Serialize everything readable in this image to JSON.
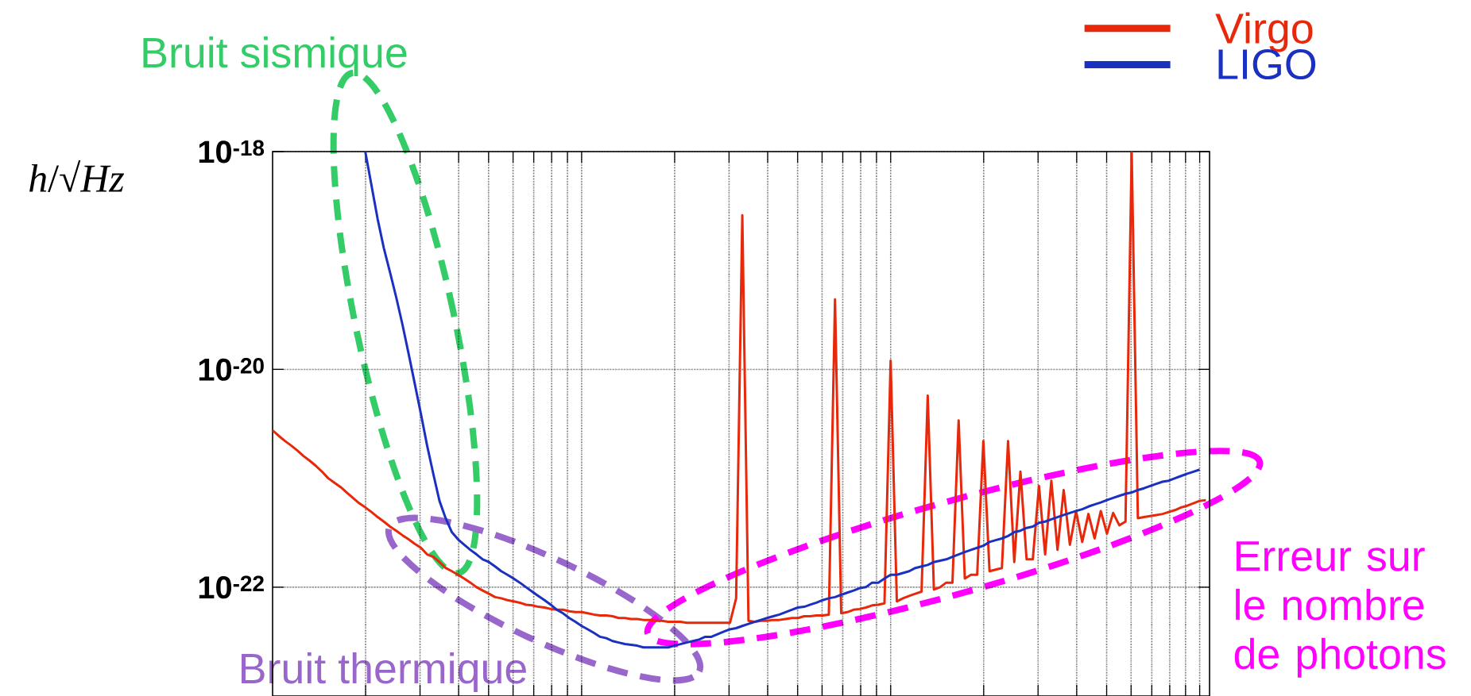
{
  "chart_data": {
    "type": "line",
    "log": "y",
    "grid": true,
    "legend": "top right",
    "marker": "none",
    "line_style": "solid",
    "tick_labels": "y",
    "categories": [
      null,
      null,
      null,
      null,
      null,
      null,
      null,
      null,
      null,
      null,
      null,
      null,
      null,
      null,
      null,
      null,
      null,
      null,
      null,
      null,
      null,
      null,
      null,
      null,
      null,
      null,
      null,
      null,
      null,
      null,
      null,
      null,
      null,
      null,
      null,
      null,
      null,
      null,
      null,
      null,
      null,
      null,
      null,
      null,
      null,
      null,
      null,
      null,
      null,
      null,
      null,
      null,
      null,
      null,
      null,
      null,
      null,
      null,
      null,
      null,
      null,
      null,
      null,
      null,
      null,
      null,
      null,
      null,
      null,
      null,
      null,
      null,
      null,
      null,
      null,
      null,
      null,
      null,
      null,
      null,
      null,
      null,
      null,
      null,
      null,
      null,
      null,
      null,
      null,
      null,
      null,
      null,
      null,
      null,
      null,
      null,
      null,
      null,
      null,
      null,
      null,
      null,
      null,
      null,
      null,
      null,
      null,
      null,
      null,
      null,
      null,
      null,
      null,
      null,
      null,
      null,
      null,
      null,
      null,
      null,
      null,
      null,
      null,
      null,
      null,
      null,
      null,
      null,
      null,
      null,
      null,
      null,
      null,
      null,
      null,
      null,
      null,
      null,
      null,
      null,
      null,
      null,
      null,
      null,
      null,
      null,
      null,
      null,
      null,
      null,
      null,
      null
    ],
    "ylim": [
      1e-23,
      1e-18
    ],
    "yticks": [
      {
        "value": 1e-18,
        "label": "10$^{-18}$"
      },
      {
        "value": 1e-20,
        "label": "10$^{-20}$"
      },
      {
        "value": 1e-22,
        "label": "10$^{-22}$"
      }
    ],
    "series": [
      {
        "name": "Virgo",
        "color": "#e8280a",
        "values": [
          2.75e-21,
          2.45e-21,
          2.2e-21,
          2e-21,
          1.8e-21,
          1.6e-21,
          1.45e-21,
          1.3e-21,
          1.15e-21,
          1e-21,
          9.1e-22,
          8.3e-22,
          7.4e-22,
          6.6e-22,
          5.9e-22,
          5.4e-22,
          4.9e-22,
          4.4e-22,
          4e-22,
          3.6e-22,
          3.3e-22,
          3e-22,
          2.75e-22,
          2.5e-22,
          2.3e-22,
          2e-22,
          1.9e-22,
          1.7e-22,
          1.5e-22,
          1.4e-22,
          1.3e-22,
          1.2e-22,
          1.1e-22,
          1e-22,
          9.3e-23,
          8.7e-23,
          8.1e-23,
          7.9e-23,
          7.6e-23,
          7.4e-23,
          7.2e-23,
          6.9e-23,
          6.8e-23,
          6.6e-23,
          6.5e-23,
          6.3e-23,
          6.2e-23,
          6.2e-23,
          6e-23,
          5.9e-23,
          5.9e-23,
          5.75e-23,
          5.6e-23,
          5.5e-23,
          5.5e-23,
          5.4e-23,
          5.2e-23,
          5.2e-23,
          5.1e-23,
          5.1e-23,
          5e-23,
          5e-23,
          4.9e-23,
          4.9e-23,
          4.8e-23,
          4.8e-23,
          4.8e-23,
          4.7e-23,
          4.7e-23,
          4.7e-23,
          4.7e-23,
          4.7e-23,
          4.7e-23,
          4.7e-23,
          4.7e-23,
          7.9e-23,
          2.6e-19,
          4.9e-23,
          4.8e-23,
          4.9e-23,
          4.9e-23,
          5e-23,
          5e-23,
          5.1e-23,
          5.2e-23,
          5.2e-23,
          5.4e-23,
          5.4e-23,
          5.5e-23,
          5.5e-23,
          5.6e-23,
          4.4e-20,
          5.75e-23,
          5.9e-23,
          6.2e-23,
          6.3e-23,
          6.5e-23,
          6.8e-23,
          6.9e-23,
          7.1e-23,
          1.2e-20,
          7.4e-23,
          7.9e-23,
          8.3e-23,
          8.7e-23,
          9.1e-23,
          5.75e-21,
          9.5e-23,
          1e-22,
          1.1e-22,
          1.1e-22,
          3.4e-21,
          1.2e-22,
          1.3e-22,
          1.3e-22,
          2.2e-21,
          1.4e-22,
          1.45e-22,
          1.5e-22,
          2.2e-21,
          1.7e-22,
          1.15e-21,
          1.8e-22,
          1.8e-22,
          8.5e-22,
          2e-22,
          9.5e-22,
          2.2e-22,
          7.8e-22,
          2.45e-22,
          5e-22,
          2.6e-22,
          4.7e-22,
          2.8e-22,
          5e-22,
          3.1e-22,
          4.8e-22,
          3.7e-22,
          4e-22,
          1e-18,
          4.3e-22,
          4.4e-22,
          4.5e-22,
          4.6e-22,
          4.7e-22,
          4.9e-22,
          5.1e-22,
          5.4e-22,
          5.6e-22,
          5.9e-22,
          6.2e-22,
          6.3e-22
        ]
      },
      {
        "name": "LIGO",
        "color": "#1a30c0",
        "values": [
          null,
          null,
          null,
          null,
          null,
          null,
          null,
          null,
          null,
          null,
          null,
          null,
          null,
          null,
          null,
          1e-18,
          4.9e-19,
          2.4e-19,
          1.3e-19,
          7.8e-20,
          4.6e-20,
          2.6e-20,
          1.4e-20,
          7.4e-21,
          3.9e-21,
          2e-21,
          1.1e-21,
          6.2e-22,
          4.3e-22,
          3.2e-22,
          2.75e-22,
          2.45e-22,
          2.2e-22,
          2e-22,
          1.8e-22,
          1.7e-22,
          1.55e-22,
          1.4e-22,
          1.3e-22,
          1.2e-22,
          1.1e-22,
          1e-22,
          9.1e-23,
          8.3e-23,
          7.6e-23,
          6.9e-23,
          6.2e-23,
          5.75e-23,
          5.2e-23,
          4.8e-23,
          4.4e-23,
          4.1e-23,
          3.8e-23,
          3.5e-23,
          3.4e-23,
          3.2e-23,
          3.1e-23,
          3e-23,
          2.95e-23,
          2.9e-23,
          2.8e-23,
          2.8e-23,
          2.8e-23,
          2.8e-23,
          2.8e-23,
          2.9e-23,
          3e-23,
          3.1e-23,
          3.2e-23,
          3.3e-23,
          3.5e-23,
          3.5e-23,
          3.7e-23,
          3.9e-23,
          4.1e-23,
          4.2e-23,
          4.4e-23,
          4.6e-23,
          4.8e-23,
          5e-23,
          5.2e-23,
          5.4e-23,
          5.6e-23,
          5.9e-23,
          6.2e-23,
          6.5e-23,
          6.6e-23,
          6.9e-23,
          7.2e-23,
          7.6e-23,
          7.9e-23,
          8.1e-23,
          8.5e-23,
          8.9e-23,
          9.3e-23,
          9.8e-23,
          1e-22,
          1.1e-22,
          1.1e-22,
          1.2e-22,
          1.3e-22,
          1.3e-22,
          1.35e-22,
          1.4e-22,
          1.5e-22,
          1.55e-22,
          1.6e-22,
          1.7e-22,
          1.75e-22,
          1.8e-22,
          1.9e-22,
          2e-22,
          2.1e-22,
          2.2e-22,
          2.3e-22,
          2.4e-22,
          2.6e-22,
          2.7e-22,
          2.8e-22,
          2.95e-22,
          3.2e-22,
          3.3e-22,
          3.5e-22,
          3.6e-22,
          3.9e-22,
          4e-22,
          4.2e-22,
          4.4e-22,
          4.6e-22,
          4.8e-22,
          5e-22,
          5.2e-22,
          5.5e-22,
          5.75e-22,
          6e-22,
          6.3e-22,
          6.6e-22,
          6.9e-22,
          7.2e-22,
          7.4e-22,
          7.8e-22,
          8.1e-22,
          8.5e-22,
          8.9e-22,
          9.3e-22,
          9.5e-22,
          1e-21,
          1.05e-21,
          1.1e-21,
          1.15e-21,
          1.2e-21,
          null
        ]
      }
    ],
    "annotations": [
      "Bruit sismique",
      "Bruit thermique",
      "Erreur sur le nombre de photons",
      "*h*/√*Hz*"
    ]
  }
}
